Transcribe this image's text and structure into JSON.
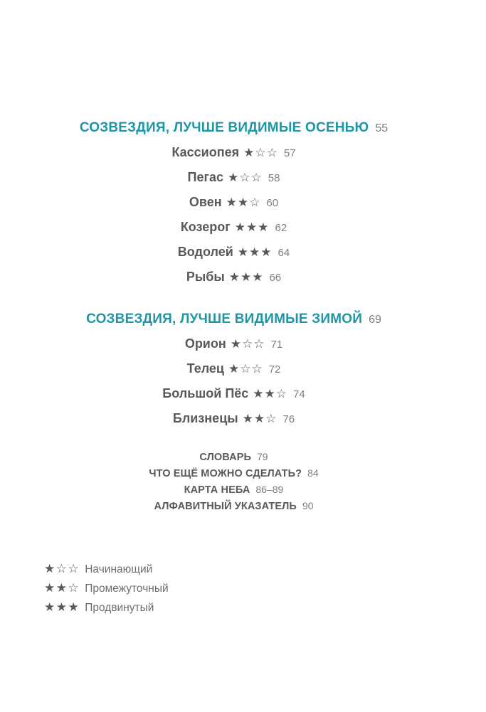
{
  "colors": {
    "heading_teal": "#1e96a8",
    "entry_dark_gray": "#58595b",
    "page_number_gray": "#7d7e81",
    "legend_gray": "#6d6e71",
    "background": "#ffffff"
  },
  "sections": [
    {
      "title": "СОЗВЕЗДИЯ, ЛУЧШЕ ВИДИМЫЕ ОСЕНЬЮ",
      "page": "55",
      "entries": [
        {
          "name": "Кассиопея",
          "stars": "★☆☆",
          "page": "57"
        },
        {
          "name": "Пегас",
          "stars": "★☆☆",
          "page": "58"
        },
        {
          "name": "Овен",
          "stars": "★★☆",
          "page": "60"
        },
        {
          "name": "Козерог",
          "stars": "★★★",
          "page": "62"
        },
        {
          "name": "Водолей",
          "stars": "★★★",
          "page": "64"
        },
        {
          "name": "Рыбы",
          "stars": "★★★",
          "page": "66"
        }
      ]
    },
    {
      "title": "СОЗВЕЗДИЯ, ЛУЧШЕ ВИДИМЫЕ ЗИМОЙ",
      "page": "69",
      "entries": [
        {
          "name": "Орион",
          "stars": "★☆☆",
          "page": "71"
        },
        {
          "name": "Телец",
          "stars": "★☆☆",
          "page": "72"
        },
        {
          "name": "Большой Пёс",
          "stars": "★★☆",
          "page": "74"
        },
        {
          "name": "Близнецы",
          "stars": "★★☆",
          "page": "76"
        }
      ]
    }
  ],
  "back_matter": [
    {
      "label": "СЛОВАРЬ",
      "page": "79"
    },
    {
      "label": "ЧТО ЕЩЁ МОЖНО СДЕЛАТЬ?",
      "page": "84"
    },
    {
      "label": "КАРТА НЕБА",
      "page": "86–89"
    },
    {
      "label": "АЛФАВИТНЫЙ УКАЗАТЕЛЬ",
      "page": "90"
    }
  ],
  "legend": [
    {
      "stars": "★☆☆",
      "label": "Начинающий"
    },
    {
      "stars": "★★☆",
      "label": "Промежуточный"
    },
    {
      "stars": "★★★",
      "label": "Продвинутый"
    }
  ]
}
